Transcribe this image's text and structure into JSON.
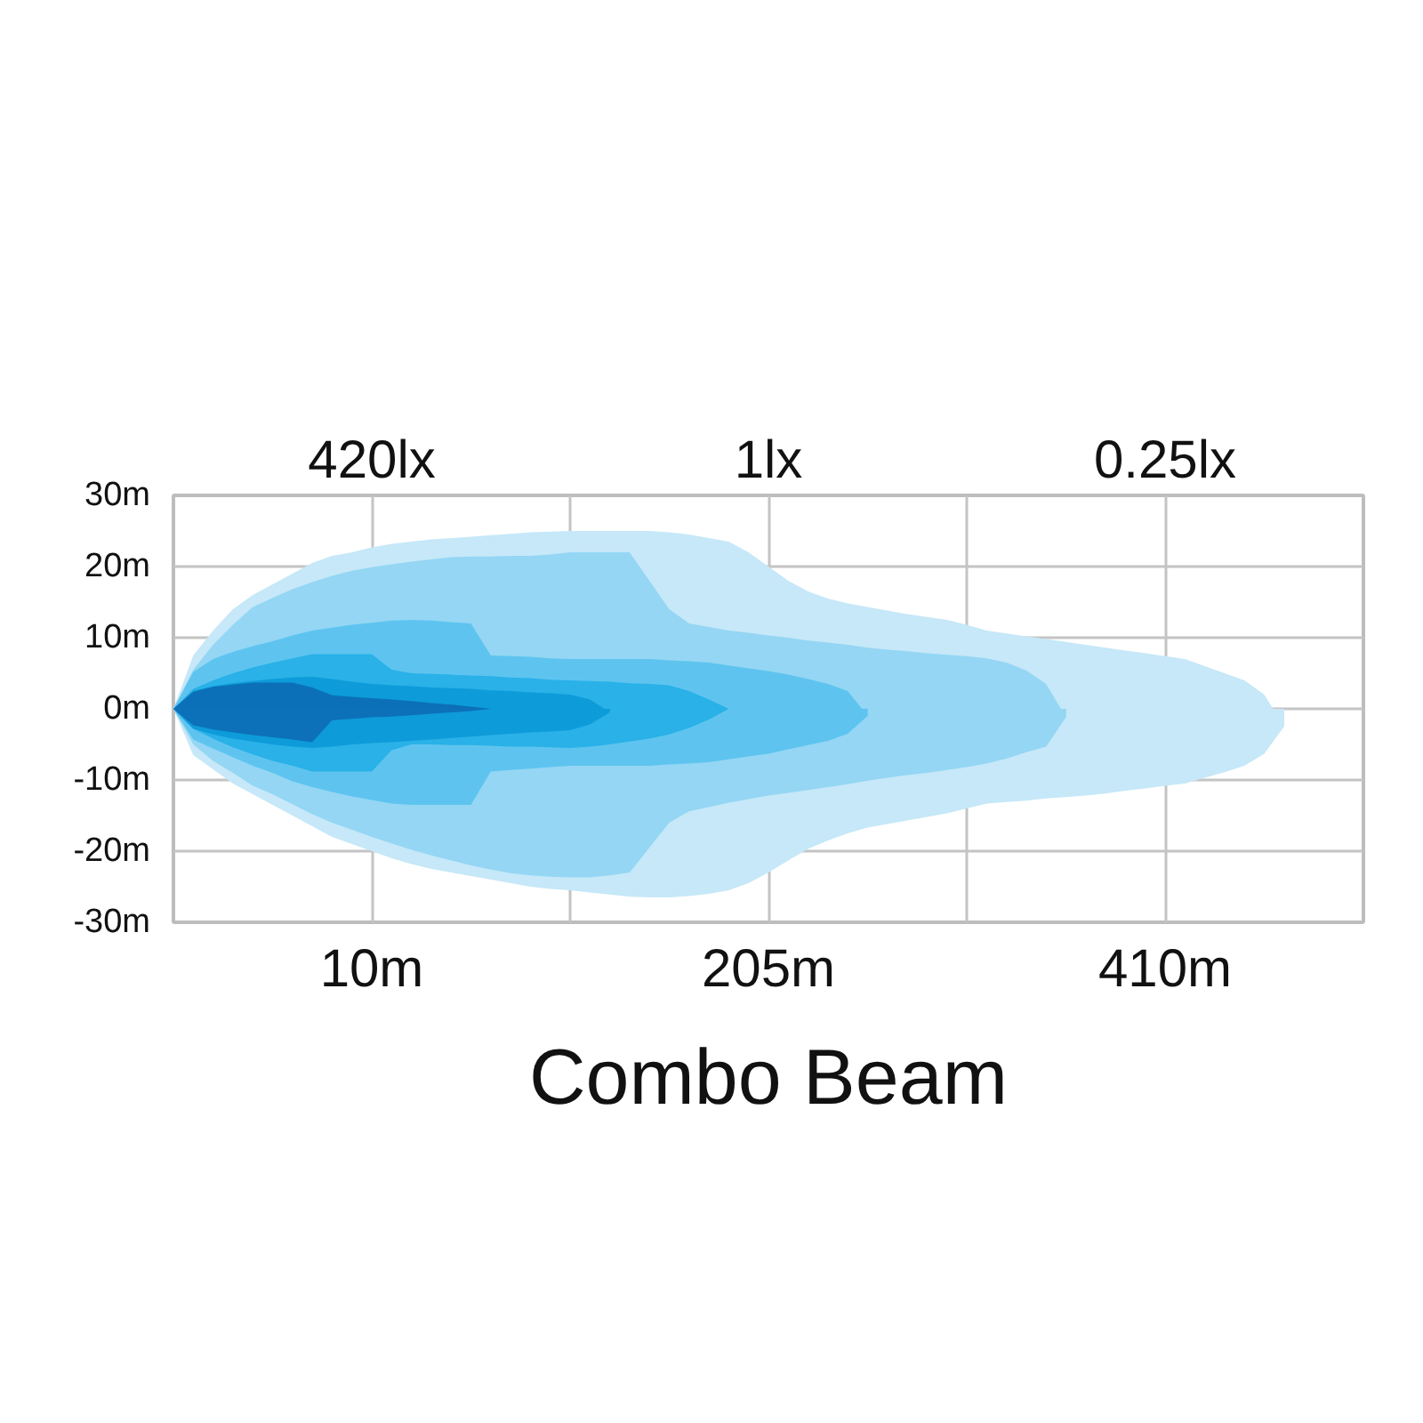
{
  "chart_data": {
    "type": "area",
    "title": "Combo Beam",
    "categories": [
      null,
      null,
      null,
      null,
      null,
      null,
      null,
      null,
      null,
      null,
      "10m",
      null,
      null,
      null,
      null,
      null,
      null,
      null,
      null,
      null,
      null,
      null,
      null,
      null,
      null,
      null,
      null,
      null,
      null,
      null,
      "205m",
      null,
      null,
      null,
      null,
      null,
      null,
      null,
      null,
      null,
      null,
      null,
      null,
      null,
      null,
      null,
      null,
      null,
      null,
      null,
      "410m",
      null,
      null,
      null,
      null,
      null,
      null,
      null,
      null,
      null,
      null
    ],
    "annotations": [
      "420lx",
      "1lx",
      "0.25lx"
    ],
    "ylim": [
      -30,
      30
    ],
    "yticks": [
      {
        "value": -30,
        "label": "-30m"
      },
      {
        "value": -20,
        "label": "-20m"
      },
      {
        "value": -10,
        "label": "-10m"
      },
      {
        "value": 0,
        "label": "0m"
      },
      {
        "value": 10,
        "label": "10m"
      },
      {
        "value": 20,
        "label": "20m"
      },
      {
        "value": 30,
        "label": "30m"
      }
    ],
    "grid": true,
    "series": [
      {
        "color": "#c6e8f8",
        "values": [
          0,
          7.5,
          11,
          14,
          16,
          17.5,
          19,
          20.5,
          21.5,
          22,
          22.7,
          23.2,
          23.5,
          23.8,
          24,
          24.2,
          24.4,
          24.6,
          24.8,
          24.9,
          25,
          25,
          25,
          25,
          25,
          24.8,
          24.5,
          24,
          23.5,
          22,
          20,
          18,
          16.5,
          15.5,
          14.8,
          14.3,
          13.8,
          13.3,
          12.9,
          12.5,
          11.8,
          11,
          10.6,
          10.2,
          9.8,
          9.4,
          9,
          8.6,
          8.2,
          7.8,
          7.4,
          7,
          6,
          5,
          4,
          2,
          -2.5,
          null,
          null,
          null,
          null
        ]
      },
      {
        "color": "#c6e8f8",
        "values": [
          0,
          -6.5,
          -8.5,
          -10.5,
          -12,
          -13.5,
          -15,
          -16.5,
          -18,
          -19,
          -20,
          -21,
          -21.8,
          -22.5,
          -23,
          -23.5,
          -24,
          -24.5,
          -25,
          -25.3,
          -25.5,
          -25.8,
          -26.1,
          -26.4,
          -26.5,
          -26.5,
          -26.3,
          -26,
          -25.5,
          -24.5,
          -23,
          -21.3,
          -19.7,
          -18.5,
          -17.5,
          -16.7,
          -16.2,
          -15.7,
          -15.2,
          -14.7,
          -14,
          -13.3,
          -13.1,
          -12.9,
          -12.6,
          -12.4,
          -12.2,
          -11.9,
          -11.5,
          -11.2,
          -10.8,
          -10.5,
          -9.7,
          -8.9,
          -8,
          -6.3,
          -2.5,
          null,
          null,
          null,
          null
        ]
      },
      {
        "color": "#94d6f4",
        "values": [
          0,
          5.5,
          9,
          11.8,
          14.3,
          15.6,
          16.8,
          17.8,
          18.7,
          19.4,
          19.9,
          20.3,
          20.7,
          21,
          21.3,
          21.4,
          21.4,
          21.5,
          21.5,
          21.7,
          22,
          22,
          22,
          22,
          18,
          14,
          12,
          11.5,
          11,
          10.7,
          10.3,
          10,
          9.6,
          9.3,
          9,
          8.6,
          8.3,
          8.1,
          7.8,
          7.6,
          7.4,
          7.1,
          6.5,
          5.4,
          3.5,
          -1.2,
          null,
          null,
          null,
          null,
          null,
          null,
          null,
          null,
          null,
          null,
          null,
          null,
          null,
          null,
          null
        ]
      },
      {
        "color": "#94d6f4",
        "values": [
          0,
          -5,
          -7.3,
          -9,
          -10.8,
          -12,
          -13.4,
          -14.8,
          -16,
          -17,
          -18,
          -18.9,
          -19.8,
          -20.6,
          -21.3,
          -22,
          -22.6,
          -23.1,
          -23.4,
          -23.6,
          -23.7,
          -23.7,
          -23.4,
          -23,
          -19.5,
          -16,
          -14.4,
          -13.8,
          -13.2,
          -12.7,
          -12.2,
          -11.8,
          -11.4,
          -11,
          -10.6,
          -10.1,
          -9.7,
          -9.3,
          -9,
          -8.6,
          -8.2,
          -7.7,
          -7,
          -6.1,
          -5.3,
          -1.2,
          null,
          null,
          null,
          null,
          null,
          null,
          null,
          null,
          null,
          null,
          null,
          null,
          null,
          null,
          null
        ]
      },
      {
        "color": "#5ec4ef",
        "values": [
          0,
          5.2,
          7,
          8,
          8.8,
          9.5,
          10.3,
          11,
          11.4,
          11.8,
          12.1,
          12.4,
          12.5,
          12.4,
          12.2,
          12,
          7.5,
          7.4,
          7.3,
          7.1,
          7,
          7,
          7,
          7,
          7,
          6.8,
          6.7,
          6.5,
          6.1,
          5.7,
          5.3,
          4.8,
          4.2,
          3.5,
          2.5,
          -1,
          null,
          null,
          null,
          null,
          null,
          null,
          null,
          null,
          null,
          null,
          null,
          null,
          null,
          null,
          null,
          null,
          null,
          null,
          null,
          null,
          null,
          null,
          null,
          null,
          null
        ]
      },
      {
        "color": "#5ec4ef",
        "values": [
          0,
          -4.3,
          -5.6,
          -6.8,
          -8,
          -9,
          -10.2,
          -11,
          -11.7,
          -12.3,
          -12.8,
          -13.3,
          -13.5,
          -13.5,
          -13.5,
          -13.5,
          -8.8,
          -8.6,
          -8.4,
          -8.2,
          -8,
          -8,
          -8,
          -8,
          -8,
          -7.8,
          -7.7,
          -7.5,
          -7.1,
          -6.7,
          -6.3,
          -5.7,
          -5.1,
          -4.5,
          -3.5,
          -1,
          null,
          null,
          null,
          null,
          null,
          null,
          null,
          null,
          null,
          null,
          null,
          null,
          null,
          null,
          null,
          null,
          null,
          null,
          null,
          null,
          null,
          null,
          null,
          null,
          null
        ]
      },
      {
        "color": "#29b1e8",
        "values": [
          0,
          2.8,
          4,
          5,
          5.8,
          6.5,
          7.1,
          7.7,
          7.7,
          7.7,
          7.7,
          5.5,
          5,
          4.9,
          4.8,
          4.7,
          4.6,
          4.4,
          4.3,
          4.1,
          4,
          3.9,
          3.8,
          3.6,
          3.5,
          3.3,
          2.5,
          1.3,
          0,
          null,
          null,
          null,
          null,
          null,
          null,
          null,
          null,
          null,
          null,
          null,
          null,
          null,
          null,
          null,
          null,
          null,
          null,
          null,
          null,
          null,
          null,
          null,
          null,
          null,
          null,
          null,
          null,
          null,
          null,
          null,
          null
        ]
      },
      {
        "color": "#29b1e8",
        "values": [
          0,
          -2.8,
          -4.2,
          -5.4,
          -6.4,
          -7.3,
          -8,
          -8.8,
          -8.8,
          -8.8,
          -8.8,
          -5.8,
          -5,
          -5,
          -5.1,
          -5.1,
          -5.2,
          -5.3,
          -5.3,
          -5.4,
          -5.5,
          -5.3,
          -5,
          -4.6,
          -4.2,
          -3.6,
          -2.7,
          -1.5,
          0,
          null,
          null,
          null,
          null,
          null,
          null,
          null,
          null,
          null,
          null,
          null,
          null,
          null,
          null,
          null,
          null,
          null,
          null,
          null,
          null,
          null,
          null,
          null,
          null,
          null,
          null,
          null,
          null,
          null,
          null,
          null,
          null
        ]
      },
      {
        "color": "#0e9bd9",
        "values": [
          0,
          2.5,
          3.2,
          3.6,
          3.9,
          4.2,
          4.4,
          4.5,
          4.2,
          3.8,
          3.5,
          3.3,
          3.2,
          3,
          2.9,
          2.8,
          2.6,
          2.5,
          2.3,
          2.2,
          2,
          1.3,
          -0.5,
          null,
          null,
          null,
          null,
          null,
          null,
          null,
          null,
          null,
          null,
          null,
          null,
          null,
          null,
          null,
          null,
          null,
          null,
          null,
          null,
          null,
          null,
          null,
          null,
          null,
          null,
          null,
          null,
          null,
          null,
          null,
          null,
          null,
          null,
          null,
          null,
          null,
          null
        ]
      },
      {
        "color": "#0e9bd9",
        "values": [
          0,
          -2.8,
          -3.6,
          -4.2,
          -4.6,
          -5,
          -5.3,
          -5.5,
          -5.3,
          -5,
          -4.8,
          -4.7,
          -4.5,
          -4.3,
          -4.1,
          -3.9,
          -3.7,
          -3.5,
          -3.3,
          -3.2,
          -3,
          -2.2,
          -0.5,
          null,
          null,
          null,
          null,
          null,
          null,
          null,
          null,
          null,
          null,
          null,
          null,
          null,
          null,
          null,
          null,
          null,
          null,
          null,
          null,
          null,
          null,
          null,
          null,
          null,
          null,
          null,
          null,
          null,
          null,
          null,
          null,
          null,
          null,
          null,
          null,
          null,
          null
        ]
      },
      {
        "color": "#0b70b7",
        "values": [
          0,
          2.4,
          3.1,
          3.4,
          3.7,
          3.7,
          3.7,
          3,
          1.9,
          1.7,
          1.5,
          1.3,
          1.1,
          0.8,
          0.6,
          0.3,
          0,
          null,
          null,
          null,
          null,
          null,
          null,
          null,
          null,
          null,
          null,
          null,
          null,
          null,
          null,
          null,
          null,
          null,
          null,
          null,
          null,
          null,
          null,
          null,
          null,
          null,
          null,
          null,
          null,
          null,
          null,
          null,
          null,
          null,
          null,
          null,
          null,
          null,
          null,
          null,
          null,
          null,
          null,
          null,
          null
        ]
      },
      {
        "color": "#0c71b9",
        "values": [
          0,
          -2.3,
          -2.9,
          -3.3,
          -3.7,
          -4,
          -4.3,
          -4.7,
          -1.6,
          -1.4,
          -1.2,
          -1.1,
          -0.9,
          -0.7,
          -0.5,
          -0.3,
          0,
          null,
          null,
          null,
          null,
          null,
          null,
          null,
          null,
          null,
          null,
          null,
          null,
          null,
          null,
          null,
          null,
          null,
          null,
          null,
          null,
          null,
          null,
          null,
          null,
          null,
          null,
          null,
          null,
          null,
          null,
          null,
          null,
          null,
          null,
          null,
          null,
          null,
          null,
          null,
          null,
          null,
          null,
          null,
          null
        ]
      }
    ]
  }
}
